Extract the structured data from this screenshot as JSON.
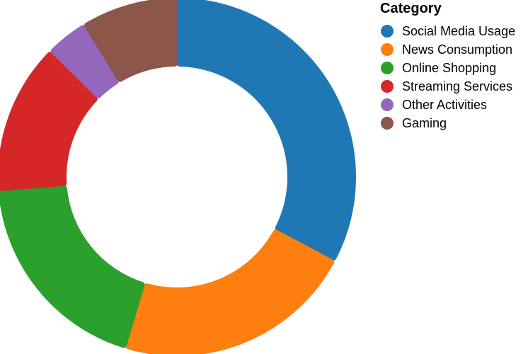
{
  "chart_data": {
    "type": "pie",
    "donut": true,
    "title": "",
    "legend_title": "Category",
    "legend_position": "top-right",
    "categories": [
      "Social Media Usage",
      "News Consumption",
      "Online Shopping",
      "Streaming Services",
      "Other Activities",
      "Gaming"
    ],
    "values": [
      30,
      20,
      17.5,
      12.5,
      3.5,
      8
    ],
    "colors": [
      "#1f77b4",
      "#ff7f0e",
      "#2ca02c",
      "#d62728",
      "#9467bd",
      "#8c564b"
    ]
  }
}
